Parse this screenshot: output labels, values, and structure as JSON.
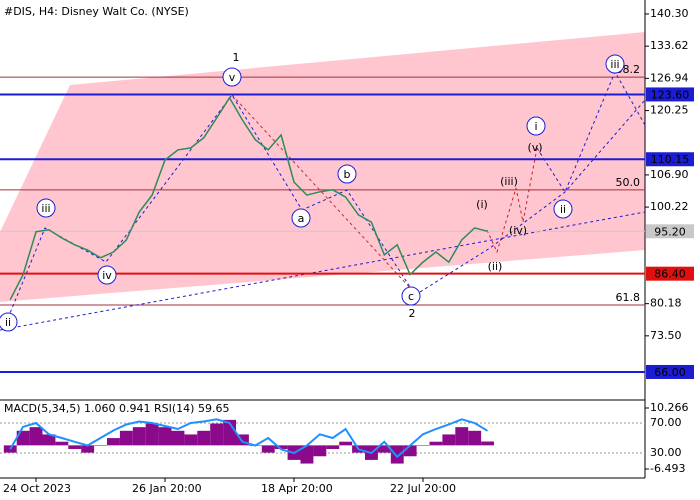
{
  "chart_data": [
    {
      "type": "line",
      "title": "#DIS, H4:  Disney Walt Co. (NYSE)",
      "values": [
        null,
        81.0,
        86.2,
        95.1,
        95.5,
        93.8,
        92.4,
        91.3,
        89.7,
        90.9,
        93.4,
        99.2,
        102.7,
        110.0,
        112.1,
        112.5,
        114.6,
        118.7,
        122.9,
        118.3,
        114.2,
        112.1,
        115.2,
        105.4,
        102.7,
        103.4,
        103.8,
        102.3,
        98.6,
        97.1,
        90.3,
        92.4,
        86.2,
        88.8,
        90.9,
        88.8,
        93.4,
        95.9,
        95.2,
        null,
        null,
        null,
        null,
        null,
        null,
        null,
        null,
        null,
        null,
        null,
        null
      ],
      "color": "#2e8b57",
      "ylim": [
        60.6,
        143.2
      ],
      "yticks": [
        {
          "value": 140.3,
          "label": "140.30"
        },
        133.62,
        126.94,
        120.25,
        {
          "value": 106.9,
          "label": "106.90"
        },
        100.22,
        80.18,
        {
          "value": 73.5,
          "label": "73.50"
        }
      ],
      "levels": [
        {
          "value": 123.6,
          "label": "123.60",
          "color": "#1c1cd2"
        },
        {
          "value": 110.15,
          "label": "110.15",
          "color": "#1c1cd2"
        },
        {
          "value": 95.2,
          "label": "95.20",
          "color": "#c8c8c8"
        },
        {
          "value": 86.4,
          "label": "86.40",
          "color": "#e01010"
        },
        {
          "value": 66,
          "label": "66.00",
          "color": "#1c1cd2"
        }
      ],
      "fibonacci": [
        {
          "value": 127.2,
          "label": "38.2"
        },
        {
          "value": 103.8,
          "label": "50.0"
        },
        {
          "value": 79.9,
          "label": "61.8"
        }
      ],
      "wave_labels": [
        "1",
        "v",
        "iii",
        "iv",
        "ii",
        "a",
        "b",
        "c",
        "2",
        "(i)",
        "(ii)",
        "(iii)",
        "(iv)",
        "(v)",
        "i",
        "ii",
        "iii"
      ]
    },
    {
      "type": "indicator",
      "title": "MACD(5,34,5) 1.060 0.941 RSI(14) 59.65",
      "categories": [
        null,
        null,
        null,
        "24 Oct 2023",
        null,
        null,
        null,
        null,
        null,
        null,
        null,
        null,
        null,
        "26 Jan 20:00",
        null,
        null,
        null,
        null,
        null,
        null,
        null,
        null,
        null,
        "18 Apr 20:00",
        null,
        null,
        null,
        null,
        null,
        null,
        null,
        null,
        null,
        "22 Jul 20:00",
        null,
        null,
        null,
        null,
        null,
        null,
        null,
        null,
        null,
        null,
        null,
        null,
        null,
        null,
        null,
        null,
        null
      ],
      "series": [
        {
          "type": "bar",
          "color": "#8b0a8b",
          "values": [
            null,
            -2,
            4,
            5,
            3,
            1,
            -1,
            -2,
            0,
            2,
            4,
            5,
            6,
            5,
            4,
            3,
            4,
            6,
            7,
            3,
            0,
            -2,
            -1,
            -4,
            -5,
            -3,
            -1,
            1,
            -2,
            -4,
            -2,
            -5,
            -3,
            0,
            1,
            3,
            5,
            4,
            1.06,
            null,
            null,
            null,
            null,
            null,
            null,
            null,
            null,
            null,
            null,
            null,
            null
          ]
        },
        {
          "type": "line",
          "color": "#1e90ff",
          "axis": "y2",
          "values": [
            null,
            35,
            65,
            70,
            55,
            50,
            45,
            40,
            50,
            60,
            68,
            72,
            70,
            66,
            62,
            70,
            72,
            75,
            70,
            45,
            40,
            50,
            35,
            30,
            40,
            55,
            50,
            62,
            35,
            30,
            45,
            25,
            40,
            55,
            62,
            68,
            75,
            70,
            59.65,
            null,
            null,
            null,
            null,
            null,
            null,
            null,
            null,
            null,
            null,
            null,
            null
          ]
        }
      ],
      "ylim": [
        -8.97,
        12.46
      ],
      "yticks": [
        10.266,
        -6.493
      ],
      "y2lim": [
        -3.3,
        100.7
      ],
      "y2ticks": [
        {
          "value": 70,
          "label": "70.00"
        },
        {
          "value": 30,
          "label": "30.00"
        }
      ]
    }
  ]
}
